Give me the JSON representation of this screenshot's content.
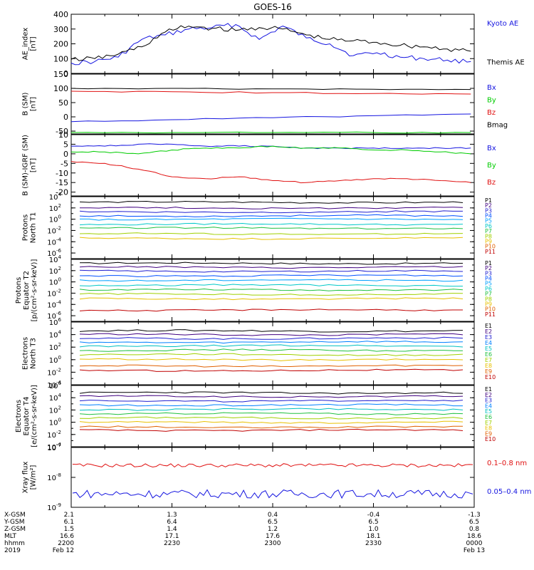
{
  "title": "GOES-16",
  "panel_colors": {
    "black": "#000000",
    "blue": "#1515e0",
    "green": "#00cc00",
    "red": "#e01010"
  },
  "chart_data": [
    {
      "type": "line",
      "id": "ae",
      "ylabel": [
        "AE_index",
        "[nT]"
      ],
      "ylim": [
        0,
        400
      ],
      "yticks": [
        0,
        100,
        200,
        300,
        400
      ],
      "x": [
        2200,
        2207,
        2214,
        2221,
        2228,
        2235,
        2242,
        2249,
        2256,
        2303,
        2310,
        2317,
        2324,
        2331,
        2338,
        2345,
        2352,
        2359
      ],
      "series": [
        {
          "name": "Kyoto AE",
          "color": "#1515e0",
          "values": [
            70,
            80,
            110,
            230,
            260,
            300,
            310,
            330,
            230,
            320,
            240,
            200,
            120,
            140,
            110,
            100,
            90,
            80
          ]
        },
        {
          "name": "Themis AE",
          "color": "#000000",
          "values": [
            95,
            100,
            130,
            180,
            280,
            320,
            305,
            290,
            310,
            300,
            260,
            230,
            220,
            210,
            190,
            180,
            165,
            150
          ]
        }
      ]
    },
    {
      "type": "line",
      "id": "bsm",
      "ylabel": [
        "B (SM)",
        "[nT]"
      ],
      "ylim": [
        -60,
        150
      ],
      "yticks": [
        -50,
        0,
        50,
        100,
        150
      ],
      "x": [
        2200,
        2230,
        2300,
        2330,
        2359
      ],
      "series": [
        {
          "name": "Bx",
          "color": "#1515e0",
          "values": [
            -17,
            -10,
            -3,
            4,
            10
          ]
        },
        {
          "name": "By",
          "color": "#00cc00",
          "values": [
            -55,
            -55,
            -55,
            -55,
            -55
          ]
        },
        {
          "name": "Bz",
          "color": "#e01010",
          "values": [
            90,
            88,
            85,
            82,
            80
          ]
        },
        {
          "name": "Bmag",
          "color": "#000000",
          "values": [
            100,
            100,
            98,
            97,
            96
          ]
        }
      ]
    },
    {
      "type": "line",
      "id": "bsm_igrf",
      "ylabel": [
        "B (SM)-IGRF (SM)",
        "[nT]"
      ],
      "ylim": [
        -22,
        10
      ],
      "yticks": [
        -20,
        -15,
        -10,
        -5,
        0,
        5,
        10
      ],
      "x": [
        2200,
        2210,
        2220,
        2230,
        2240,
        2250,
        2300,
        2310,
        2320,
        2330,
        2340,
        2350,
        2359
      ],
      "series": [
        {
          "name": "Bx",
          "color": "#1515e0",
          "values": [
            4,
            4,
            5,
            5,
            4,
            4,
            4,
            3,
            3,
            3,
            3,
            3,
            3
          ]
        },
        {
          "name": "By",
          "color": "#00cc00",
          "values": [
            1,
            1,
            0,
            2,
            3,
            3,
            4,
            3,
            3,
            2,
            2,
            1,
            0
          ]
        },
        {
          "name": "Bz",
          "color": "#e01010",
          "values": [
            -4,
            -5,
            -8,
            -12,
            -13,
            -12,
            -14,
            -15,
            -14,
            -13,
            -13,
            -14,
            -15
          ]
        }
      ]
    },
    {
      "type": "line",
      "id": "prot_t1",
      "ylabel": [
        "Protons",
        "North T1"
      ],
      "log": true,
      "ylim_exp": [
        -7,
        4
      ],
      "ytick_exps": [
        -6,
        -4,
        -2,
        0,
        2,
        4
      ],
      "legend": [
        "P1",
        "P2",
        "P3",
        "P4",
        "P5",
        "P6",
        "P7",
        "P8",
        "P9",
        "P10",
        "P11"
      ],
      "legend_colors": [
        "#000000",
        "#400080",
        "#2020d0",
        "#0050ff",
        "#00a0ff",
        "#00c8c8",
        "#20c040",
        "#a0d000",
        "#e8c000",
        "#e06000",
        "#c00000"
      ],
      "levels_exp": [
        3,
        2,
        1.3,
        0.6,
        0,
        -0.9,
        -1.6,
        -2.6,
        -3.4,
        null,
        null
      ]
    },
    {
      "type": "line",
      "id": "prot_t2",
      "ylabel": [
        "Protons",
        "Equator T2",
        "[p/(cm²-s-sr-keV)]"
      ],
      "log": true,
      "ylim_exp": [
        -7,
        4
      ],
      "ytick_exps": [
        -6,
        -4,
        -2,
        0,
        2,
        4
      ],
      "legend": [
        "P1",
        "P2",
        "P3",
        "P4",
        "P5",
        "P6",
        "P7",
        "P8",
        "P9",
        "P10",
        "P11"
      ],
      "legend_colors": [
        "#000000",
        "#400080",
        "#2020d0",
        "#0050ff",
        "#00a0ff",
        "#00c8c8",
        "#20c040",
        "#a0d000",
        "#e8c000",
        "#e06000",
        "#c00000"
      ],
      "levels_exp": [
        3.3,
        2.6,
        1.9,
        1.1,
        0.3,
        -0.6,
        -1.4,
        -2.2,
        -3,
        null,
        -5
      ]
    },
    {
      "type": "line",
      "id": "elec_t3",
      "ylabel": [
        "Electrons",
        "North T3"
      ],
      "log": true,
      "ylim_exp": [
        -4,
        6
      ],
      "ytick_exps": [
        -4,
        -2,
        0,
        2,
        4,
        6
      ],
      "legend": [
        "E1",
        "E2",
        "E3",
        "E4",
        "E5",
        "E6",
        "E7",
        "E8",
        "E9",
        "E10"
      ],
      "legend_colors": [
        "#000000",
        "#400080",
        "#2020d0",
        "#0080ff",
        "#00c0c0",
        "#20c040",
        "#a0d000",
        "#e8c000",
        "#e06000",
        "#c00000"
      ],
      "levels_exp": [
        4.6,
        4,
        3.4,
        2.8,
        2.2,
        1.5,
        0.8,
        0,
        -1,
        -1.7
      ]
    },
    {
      "type": "line",
      "id": "elec_t4",
      "ylabel": [
        "Electrons",
        "Equator T4",
        "[e/(cm²-s-sr-keV)]"
      ],
      "log": true,
      "ylim_exp": [
        -4,
        6
      ],
      "ytick_exps": [
        -4,
        -2,
        0,
        2,
        4,
        6
      ],
      "legend": [
        "E1",
        "E2",
        "E3",
        "E4",
        "E5",
        "E6",
        "E7",
        "E8",
        "E9",
        "E10"
      ],
      "legend_colors": [
        "#000000",
        "#400080",
        "#2020d0",
        "#0080ff",
        "#00c0c0",
        "#20c040",
        "#a0d000",
        "#e8c000",
        "#e06000",
        "#c00000"
      ],
      "levels_exp": [
        4.8,
        4.2,
        3.5,
        2.8,
        2.1,
        1.4,
        0.7,
        0,
        -0.8,
        -1.3
      ]
    },
    {
      "type": "line",
      "id": "xray",
      "ylabel": [
        "Xray  flux",
        "[W/m²]"
      ],
      "log": true,
      "ylim_exp": [
        -9,
        -7
      ],
      "ytick_exps": [
        -9,
        -8,
        -7
      ],
      "series": [
        {
          "name": "0.1–0.8 nm",
          "color": "#e01010",
          "level_exp": -7.6
        },
        {
          "name": "0.05–0.4 nm",
          "color": "#1515e0",
          "level_exp": -8.55
        }
      ]
    }
  ],
  "xaxis": {
    "rows": [
      "X-GSM",
      "Y-GSM",
      "Z-GSM",
      "MLT",
      "hhmm",
      "2019"
    ],
    "columns": [
      {
        "values": [
          "2.1",
          "6.1",
          "1.5",
          "16.6",
          "2200",
          "Feb 12"
        ]
      },
      {
        "values": [
          "1.3",
          "6.4",
          "1.4",
          "17.1",
          "2230",
          ""
        ]
      },
      {
        "values": [
          "0.4",
          "6.5",
          "1.2",
          "17.6",
          "2300",
          ""
        ]
      },
      {
        "values": [
          "-0.4",
          "6.5",
          "1.0",
          "18.1",
          "2330",
          ""
        ]
      },
      {
        "values": [
          "-1.3",
          "6.5",
          "0.8",
          "18.6",
          "0000",
          "Feb 13"
        ]
      }
    ]
  }
}
